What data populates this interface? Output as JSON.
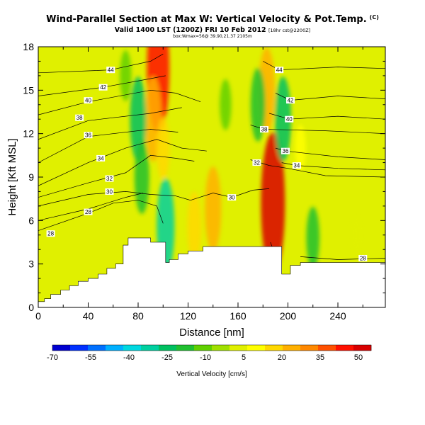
{
  "header": {
    "title": "Wind-Parallel Section at Max W: Vertical Velocity & Pot.Temp.",
    "copyright": "(C)",
    "subtitle_main": "Valid 1400 LST (1200Z) FRI 10 Feb 2012",
    "subtitle_small": "[18hr cst@2200Z]",
    "info_line": "box:Wmax=56@ 39.90,21.37 2105m"
  },
  "chart_data": {
    "type": "heatmap",
    "xlabel": "Distance [nm]",
    "ylabel": "Height [Kft MSL]",
    "xlim": [
      0,
      278
    ],
    "ylim": [
      0,
      18
    ],
    "x_ticks": [
      0,
      40,
      80,
      120,
      160,
      200,
      240
    ],
    "y_ticks": [
      0,
      3,
      6,
      9,
      12,
      15,
      18
    ],
    "grid": false,
    "terrain": [
      [
        0,
        0.4
      ],
      [
        5,
        0.4
      ],
      [
        5,
        0.6
      ],
      [
        10,
        0.6
      ],
      [
        10,
        0.9
      ],
      [
        18,
        0.9
      ],
      [
        18,
        1.2
      ],
      [
        25,
        1.2
      ],
      [
        25,
        1.5
      ],
      [
        32,
        1.5
      ],
      [
        32,
        1.8
      ],
      [
        40,
        1.8
      ],
      [
        40,
        2.0
      ],
      [
        48,
        2.0
      ],
      [
        48,
        2.3
      ],
      [
        55,
        2.3
      ],
      [
        55,
        2.7
      ],
      [
        62,
        2.7
      ],
      [
        62,
        3.0
      ],
      [
        68,
        3.0
      ],
      [
        68,
        4.3
      ],
      [
        72,
        4.3
      ],
      [
        72,
        4.8
      ],
      [
        90,
        4.8
      ],
      [
        90,
        4.5
      ],
      [
        102,
        4.5
      ],
      [
        102,
        3.1
      ],
      [
        105,
        3.1
      ],
      [
        105,
        3.3
      ],
      [
        112,
        3.3
      ],
      [
        112,
        3.7
      ],
      [
        120,
        3.7
      ],
      [
        120,
        3.9
      ],
      [
        132,
        3.9
      ],
      [
        132,
        4.2
      ],
      [
        195,
        4.2
      ],
      [
        195,
        2.3
      ],
      [
        202,
        2.3
      ],
      [
        202,
        2.9
      ],
      [
        210,
        2.9
      ],
      [
        210,
        3.1
      ],
      [
        278,
        3.1
      ]
    ],
    "vv_cells": [
      {
        "x": 96,
        "z": 16.5,
        "w": 45
      },
      {
        "x": 92,
        "z": 13,
        "w": 25
      },
      {
        "x": 100,
        "z": 11,
        "w": 15
      },
      {
        "x": 80,
        "z": 13,
        "w": -25
      },
      {
        "x": 83,
        "z": 9,
        "w": -20
      },
      {
        "x": 102,
        "z": 5.6,
        "w": -30
      },
      {
        "x": 70,
        "z": 16,
        "w": -10
      },
      {
        "x": 183,
        "z": 15,
        "w": 25
      },
      {
        "x": 188,
        "z": 7.2,
        "w": 52
      },
      {
        "x": 176,
        "z": 14,
        "w": -20
      },
      {
        "x": 196,
        "z": 13,
        "w": -25
      },
      {
        "x": 140,
        "z": 6.8,
        "w": 25
      },
      {
        "x": 125,
        "z": 5.6,
        "w": 18
      },
      {
        "x": 150,
        "z": 14,
        "w": -10
      },
      {
        "x": 220,
        "z": 4.8,
        "w": -15
      },
      {
        "x": 255,
        "z": 5,
        "w": 6
      },
      {
        "x": 210,
        "z": 11,
        "w": 8
      }
    ],
    "theta_contours": [
      {
        "value": 28,
        "label_at": [
          10,
          5.1
        ],
        "points": [
          [
            0,
            5.3
          ],
          [
            40,
            6.5
          ],
          [
            60,
            7.2
          ],
          [
            80,
            7.4
          ],
          [
            95,
            7.0
          ],
          [
            100,
            5.8
          ]
        ]
      },
      {
        "value": 28,
        "label_at": [
          40,
          6.6
        ],
        "points": [
          [
            0,
            6.0
          ],
          [
            40,
            6.8
          ],
          [
            70,
            7.6
          ],
          [
            84,
            7.9
          ]
        ]
      },
      {
        "value": 28,
        "label_at": [
          260,
          3.4
        ],
        "points": [
          [
            210,
            3.5
          ],
          [
            240,
            3.3
          ],
          [
            278,
            3.4
          ]
        ]
      },
      {
        "value": 28,
        "label_at": [
          189,
          3.8
        ],
        "points": [
          [
            186,
            4.5
          ],
          [
            189,
            3.8
          ],
          [
            190,
            2.7
          ]
        ]
      },
      {
        "value": 30,
        "label_at": [
          57,
          8.0
        ],
        "points": [
          [
            0,
            7.0
          ],
          [
            40,
            7.8
          ],
          [
            70,
            8.0
          ],
          [
            90,
            7.8
          ],
          [
            110,
            7.7
          ],
          [
            122,
            7.4
          ]
        ]
      },
      {
        "value": 30,
        "label_at": [
          155,
          7.6
        ],
        "points": [
          [
            122,
            7.4
          ],
          [
            140,
            7.9
          ],
          [
            155,
            7.6
          ],
          [
            172,
            8.1
          ],
          [
            185,
            8.2
          ]
        ]
      },
      {
        "value": 32,
        "label_at": [
          57,
          8.9
        ],
        "points": [
          [
            0,
            7.6
          ],
          [
            40,
            8.6
          ],
          [
            70,
            9.3
          ],
          [
            90,
            10.5
          ],
          [
            110,
            10.3
          ],
          [
            125,
            10.1
          ]
        ]
      },
      {
        "value": 32,
        "label_at": [
          175,
          10.0
        ],
        "points": [
          [
            170,
            10.2
          ],
          [
            185,
            9.8
          ],
          [
            200,
            9.6
          ],
          [
            230,
            9.1
          ],
          [
            278,
            9.0
          ]
        ]
      },
      {
        "value": 34,
        "label_at": [
          50,
          10.3
        ],
        "points": [
          [
            0,
            8.4
          ],
          [
            40,
            10.0
          ],
          [
            70,
            11.0
          ],
          [
            95,
            11.6
          ],
          [
            115,
            11.0
          ],
          [
            135,
            10.8
          ]
        ]
      },
      {
        "value": 34,
        "label_at": [
          207,
          9.8
        ],
        "points": [
          [
            195,
            10.0
          ],
          [
            207,
            9.8
          ],
          [
            240,
            9.6
          ],
          [
            278,
            9.5
          ]
        ]
      },
      {
        "value": 36,
        "label_at": [
          40,
          11.9
        ],
        "points": [
          [
            0,
            10.0
          ],
          [
            40,
            11.8
          ],
          [
            90,
            12.3
          ],
          [
            112,
            12.1
          ]
        ]
      },
      {
        "value": 36,
        "label_at": [
          198,
          10.8
        ],
        "points": [
          [
            190,
            11.0
          ],
          [
            198,
            10.8
          ],
          [
            240,
            10.4
          ],
          [
            278,
            10.2
          ]
        ]
      },
      {
        "value": 38,
        "label_at": [
          33,
          13.1
        ],
        "points": [
          [
            0,
            11.6
          ],
          [
            40,
            12.9
          ],
          [
            90,
            13.4
          ],
          [
            115,
            13.8
          ]
        ]
      },
      {
        "value": 38,
        "label_at": [
          181,
          12.3
        ],
        "points": [
          [
            170,
            12.6
          ],
          [
            181,
            12.3
          ],
          [
            230,
            12.2
          ],
          [
            278,
            12.0
          ]
        ]
      },
      {
        "value": 40,
        "label_at": [
          40,
          14.3
        ],
        "points": [
          [
            0,
            13.3
          ],
          [
            40,
            14.2
          ],
          [
            90,
            15.0
          ],
          [
            110,
            14.8
          ],
          [
            130,
            14.2
          ]
        ]
      },
      {
        "value": 40,
        "label_at": [
          201,
          13.0
        ],
        "points": [
          [
            185,
            13.4
          ],
          [
            201,
            13.0
          ],
          [
            240,
            13.2
          ],
          [
            278,
            13.0
          ]
        ]
      },
      {
        "value": 42,
        "label_at": [
          52,
          15.2
        ],
        "points": [
          [
            0,
            14.6
          ],
          [
            52,
            15.2
          ],
          [
            90,
            15.8
          ],
          [
            102,
            16.0
          ]
        ]
      },
      {
        "value": 42,
        "label_at": [
          202,
          14.3
        ],
        "points": [
          [
            190,
            14.8
          ],
          [
            202,
            14.3
          ],
          [
            240,
            14.6
          ],
          [
            278,
            14.4
          ]
        ]
      },
      {
        "value": 44,
        "label_at": [
          58,
          16.4
        ],
        "points": [
          [
            0,
            16.2
          ],
          [
            58,
            16.4
          ],
          [
            90,
            17.0
          ],
          [
            100,
            17.5
          ]
        ]
      },
      {
        "value": 44,
        "label_at": [
          193,
          16.4
        ],
        "points": [
          [
            180,
            17.0
          ],
          [
            193,
            16.4
          ],
          [
            240,
            16.6
          ],
          [
            278,
            16.5
          ]
        ]
      }
    ],
    "colorbar": {
      "title": "Vertical Velocity [cm/s]",
      "tick_labels": [
        "-70",
        "-55",
        "-40",
        "-25",
        "-10",
        "5",
        "20",
        "35",
        "50"
      ],
      "tick_values": [
        -70,
        -55,
        -40,
        -25,
        -10,
        5,
        20,
        35,
        50
      ],
      "range": [
        -70,
        55
      ],
      "colors": [
        "#0000d0",
        "#0030ff",
        "#0070ff",
        "#00b0ff",
        "#00d8e0",
        "#00d0a0",
        "#00c060",
        "#20c030",
        "#60d000",
        "#a0e000",
        "#e0f000",
        "#ffff00",
        "#ffd800",
        "#ffb000",
        "#ff8800",
        "#ff5000",
        "#ff1000",
        "#d80000"
      ]
    }
  }
}
